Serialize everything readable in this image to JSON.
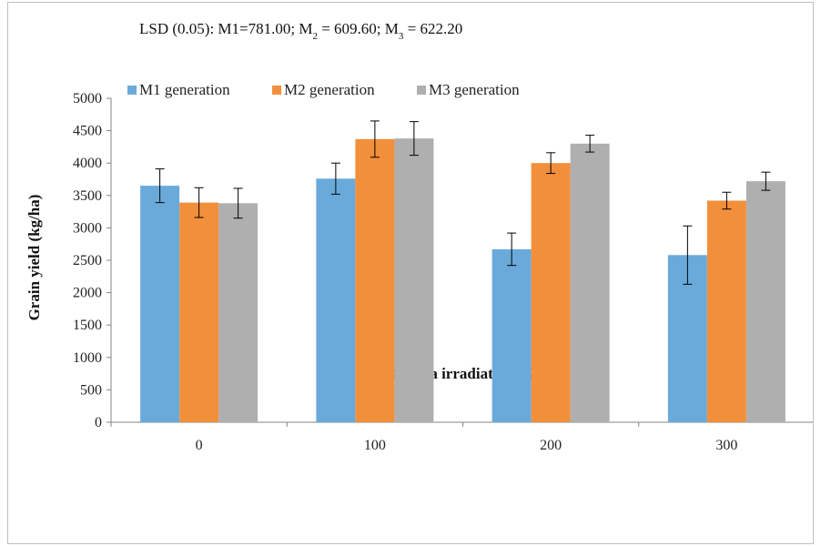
{
  "chart_data": {
    "type": "bar",
    "title": "",
    "annotation": "LSD (0.05): M1=781.00; M2 = 609.60; M3 = 622.20",
    "annotation_parts": {
      "prefix": "LSD (0.05): M1=781.00; M",
      "sub2": "2",
      "mid": " = 609.60; M",
      "sub3": "3",
      "suffix": " = 622.20"
    },
    "xlabel": "Gamma irradiation (Gy)",
    "ylabel": "Grain yield (kg/ha)",
    "categories": [
      "0",
      "100",
      "200",
      "300"
    ],
    "ylim": [
      0,
      5000
    ],
    "yticks": [
      0,
      500,
      1000,
      1500,
      2000,
      2500,
      3000,
      3500,
      4000,
      4500,
      5000
    ],
    "grid": false,
    "legend_position": "top-left",
    "series": [
      {
        "name": "M1 generation",
        "color": "#6aaadb",
        "values": [
          3650,
          3760,
          2670,
          2580
        ],
        "errors": [
          260,
          240,
          250,
          450
        ]
      },
      {
        "name": "M2 generation",
        "color": "#f28f3b",
        "values": [
          3390,
          4370,
          4000,
          3420
        ],
        "errors": [
          230,
          280,
          160,
          130
        ]
      },
      {
        "name": "M3 generation",
        "color": "#afafaf",
        "values": [
          3380,
          4380,
          4300,
          3720
        ],
        "errors": [
          230,
          260,
          130,
          140
        ]
      }
    ]
  }
}
